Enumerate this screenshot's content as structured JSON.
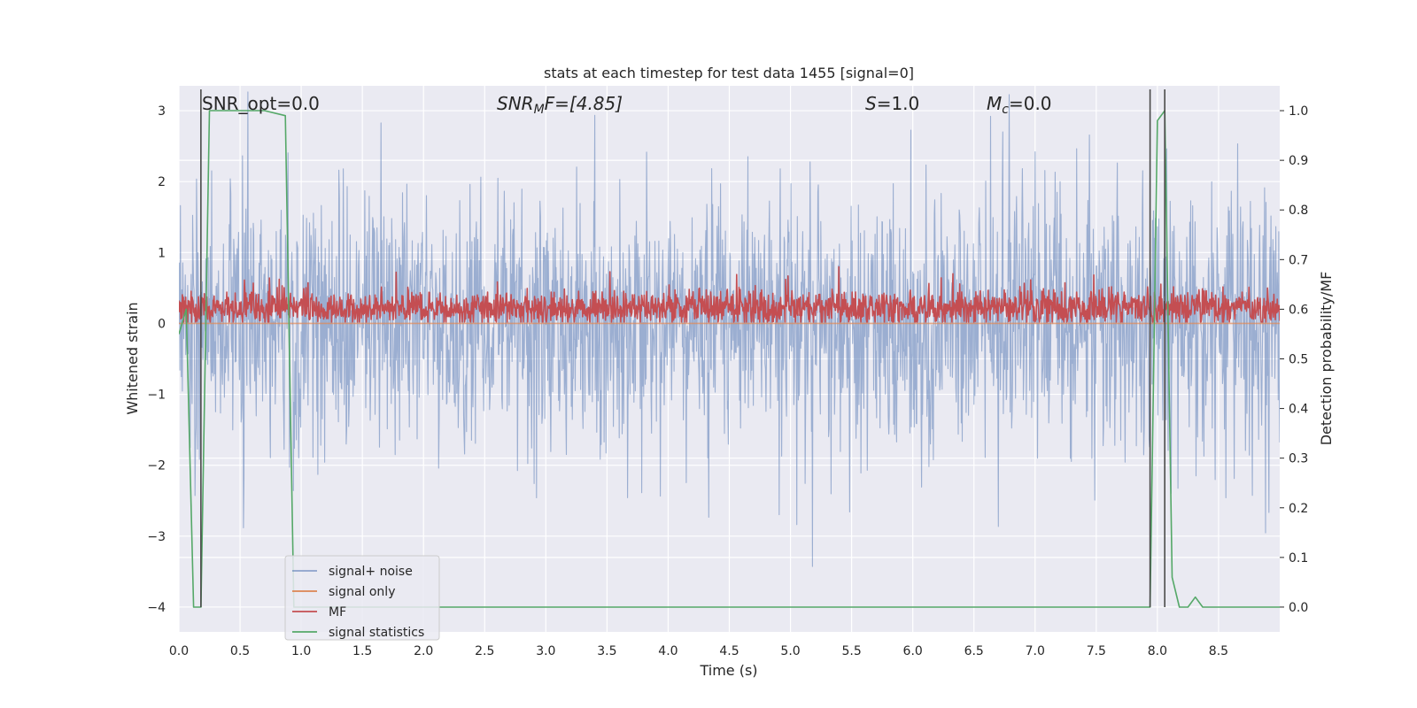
{
  "chart_data": {
    "type": "line",
    "title": "stats at each timestep for test data 1455 [signal=0]",
    "xlabel": "Time (s)",
    "ylabel_left": "Whitened strain",
    "ylabel_right": "Detection probability/MF",
    "xlim": [
      0,
      9
    ],
    "ylim_left": [
      -4.35,
      3.35
    ],
    "ylim_right": [
      -0.05,
      1.05
    ],
    "x_ticks": [
      "0.0",
      "0.5",
      "1.0",
      "1.5",
      "2.0",
      "2.5",
      "3.0",
      "3.5",
      "4.0",
      "4.5",
      "5.0",
      "5.5",
      "6.0",
      "6.5",
      "7.0",
      "7.5",
      "8.0",
      "8.5"
    ],
    "y_left_ticks": [
      "3",
      "2",
      "1",
      "0",
      "−1",
      "−2",
      "−3",
      "−4"
    ],
    "y_right_ticks": [
      "1.0",
      "0.9",
      "0.8",
      "0.7",
      "0.6",
      "0.5",
      "0.4",
      "0.3",
      "0.2",
      "0.1",
      "0.0"
    ],
    "grid": true,
    "legend_position": "lower-left",
    "annotations": {
      "snr_opt": "SNR_opt=0.0",
      "snr_mf_main": "SNR",
      "snr_mf_sub": "M",
      "snr_mf_rest": "F=[4.85]",
      "s_main": "S",
      "s_rest": "=1.0",
      "mc_main": "M",
      "mc_sub": "c",
      "mc_rest": "=0.0"
    },
    "series": [
      {
        "name": "signal+ noise",
        "color": "#4c72b0",
        "axis": "left",
        "kind": "noise",
        "duration": 9.0,
        "sample_rate": 250,
        "sigma": 0.9
      },
      {
        "name": "signal only",
        "color": "#dd8452",
        "axis": "left",
        "x": [
          0,
          9
        ],
        "y": [
          0.0,
          0.0
        ]
      },
      {
        "name": "MF",
        "color": "#c44e52",
        "axis": "left",
        "kind": "noise-positive",
        "duration": 9.0,
        "sample_rate": 250,
        "mean": 0.22,
        "sigma": 0.12
      },
      {
        "name": "signal statistics",
        "color": "#55a868",
        "axis": "right",
        "x": [
          0.0,
          0.06,
          0.12,
          0.18,
          0.25,
          0.32,
          0.5,
          0.7,
          0.87,
          0.94,
          1.0,
          2.0,
          4.0,
          6.0,
          7.94,
          8.0,
          8.06,
          8.12,
          8.18,
          8.25,
          8.31,
          8.37,
          8.43,
          9.0
        ],
        "y": [
          0.55,
          0.6,
          0.0,
          0.0,
          1.0,
          1.0,
          1.0,
          1.0,
          0.99,
          0.0,
          0.0,
          0.0,
          0.0,
          0.0,
          0.0,
          0.98,
          1.0,
          0.06,
          0.0,
          0.0,
          0.02,
          0.0,
          0.0,
          0.0
        ]
      }
    ],
    "vertical_lines": [
      0.18,
      7.94,
      8.06
    ]
  }
}
